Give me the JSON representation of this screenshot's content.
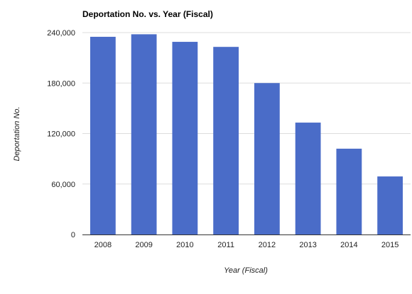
{
  "chart_data": {
    "type": "bar",
    "title": "Deportation No. vs. Year (Fiscal)",
    "xlabel": "Year (Fiscal)",
    "ylabel": "Deportation No.",
    "categories": [
      "2008",
      "2009",
      "2010",
      "2011",
      "2012",
      "2013",
      "2014",
      "2015"
    ],
    "values": [
      235000,
      238000,
      229000,
      223000,
      180000,
      133000,
      102000,
      69000
    ],
    "ylim": [
      0,
      240000
    ],
    "yticks": [
      0,
      60000,
      120000,
      180000,
      240000
    ],
    "ytick_labels": [
      "0",
      "60,000",
      "120,000",
      "180,000",
      "240,000"
    ],
    "grid": true,
    "legend": "none",
    "bar_color": "#4a6cc8"
  }
}
